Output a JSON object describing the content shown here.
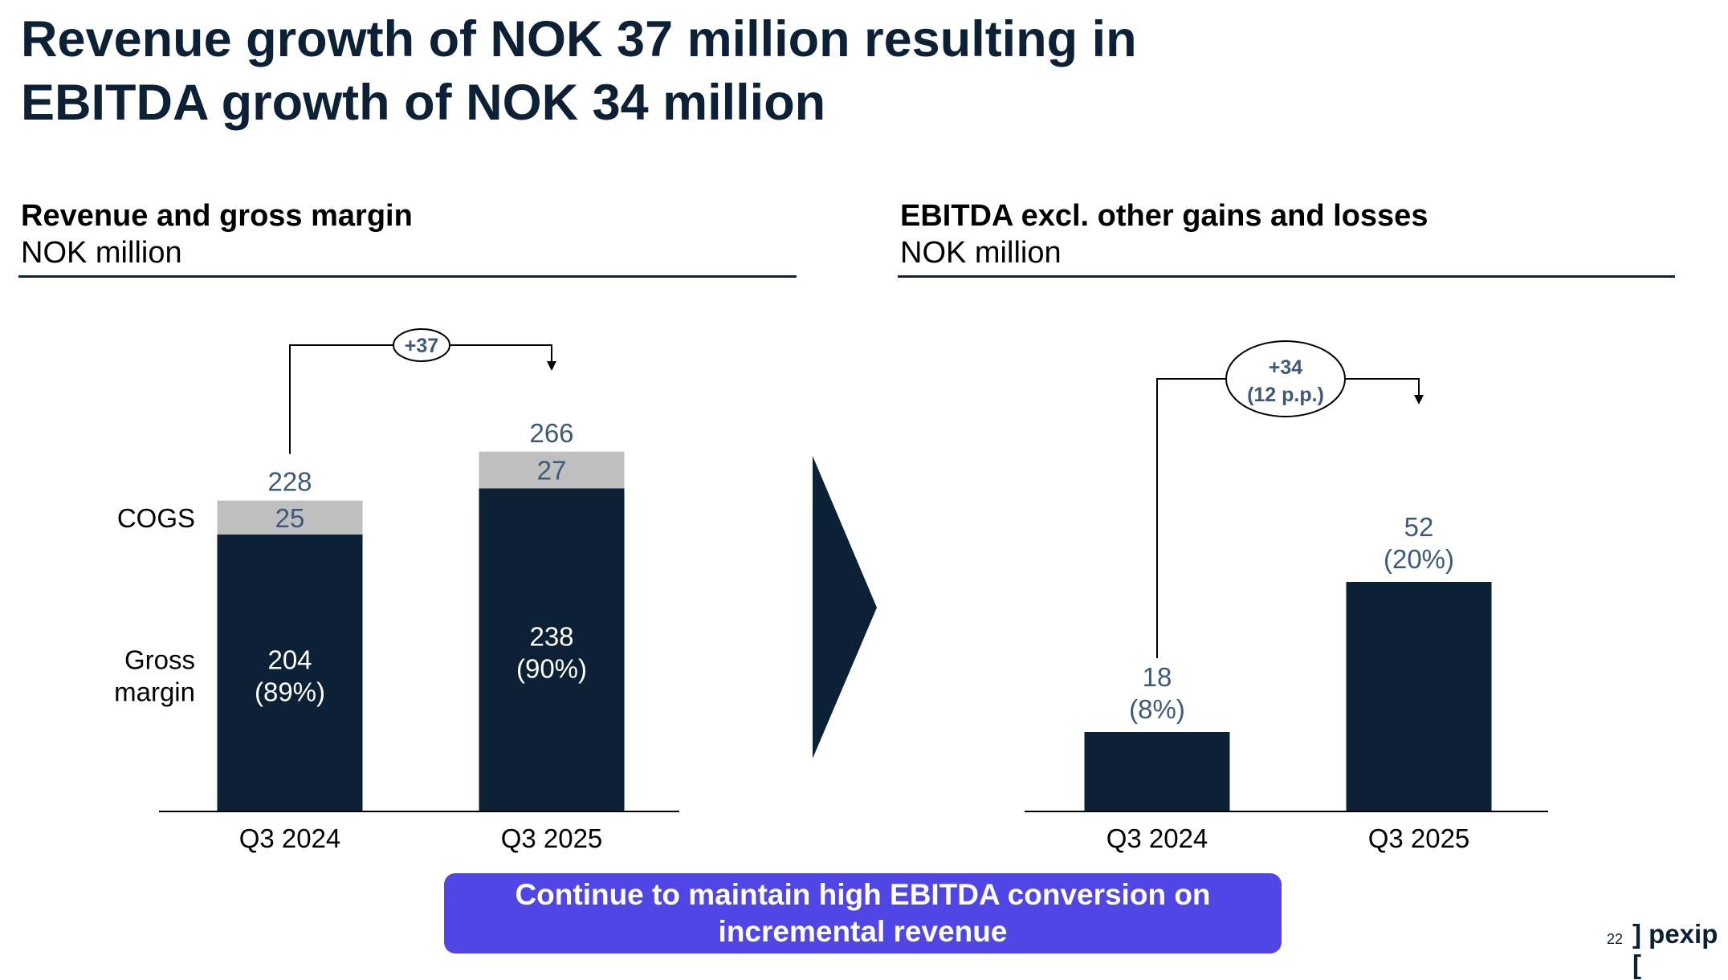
{
  "title": {
    "line1": "Revenue growth of NOK 37 million resulting in",
    "line2": "EBITDA growth of NOK 34 million"
  },
  "left_section": {
    "heading": "Revenue and gross margin",
    "unit": "NOK million"
  },
  "right_section": {
    "heading": "EBITDA excl. other gains and losses",
    "unit": "NOK million"
  },
  "chart_data": [
    {
      "type": "bar",
      "stacked": true,
      "title": "Revenue and gross margin",
      "unit": "NOK million",
      "categories": [
        "Q3 2024",
        "Q3 2025"
      ],
      "series": [
        {
          "name": "Gross margin",
          "label_lines": [
            "Gross",
            "margin"
          ],
          "values": [
            204,
            238
          ],
          "pct_labels": [
            "(89%)",
            "(90%)"
          ],
          "color": "#0d2136"
        },
        {
          "name": "COGS",
          "values": [
            25,
            27
          ],
          "color": "#bfbfbf"
        }
      ],
      "totals": [
        228,
        266
      ],
      "change_label": "+37",
      "ylim": [
        0,
        290
      ]
    },
    {
      "type": "bar",
      "title": "EBITDA excl. other gains and losses",
      "unit": "NOK million",
      "categories": [
        "Q3 2024",
        "Q3 2025"
      ],
      "values": [
        18,
        52
      ],
      "pct_labels": [
        "(8%)",
        "(20%)"
      ],
      "change_label": [
        "+34",
        "(12 p.p.)"
      ],
      "color": "#0d2136",
      "ylim": [
        0,
        90
      ]
    }
  ],
  "colors": {
    "navy": "#0d2136",
    "value_blue": "#3d5a78",
    "cogs_grey": "#bfbfbf",
    "cta_purple": "#4f46e5"
  },
  "callout": {
    "line1": "Continue to maintain high EBITDA conversion on",
    "line2": "incremental revenue"
  },
  "footer": {
    "page_number": "22",
    "logo": "] pexip ["
  }
}
